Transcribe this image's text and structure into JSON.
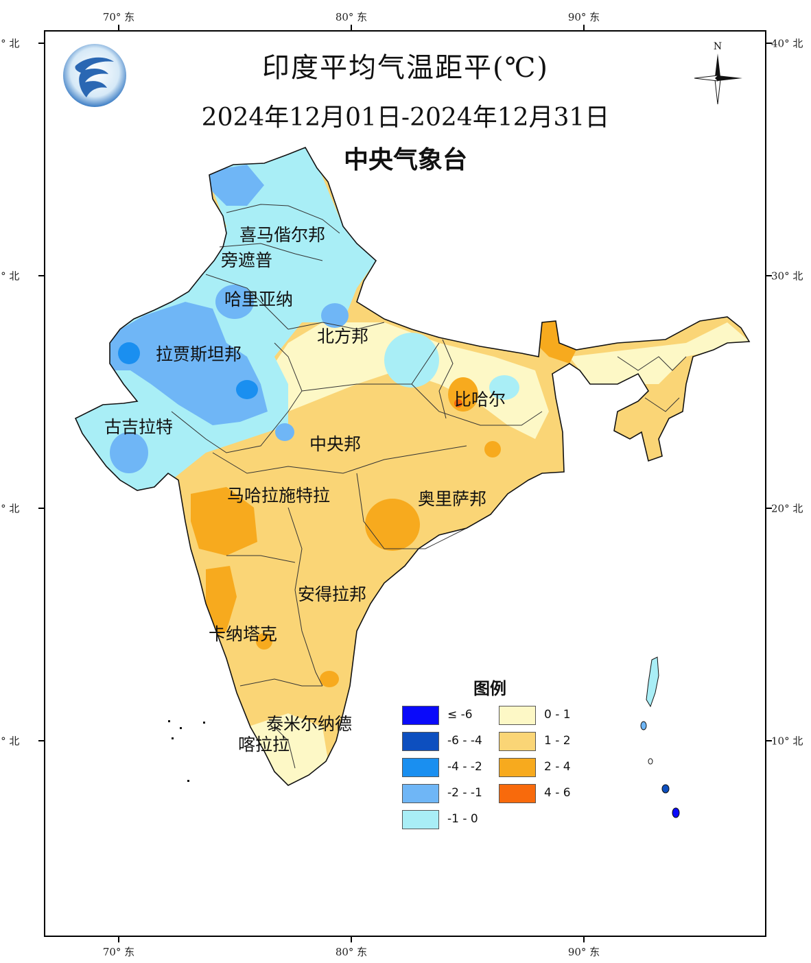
{
  "title": "印度平均气温距平(℃)",
  "subtitle": "2024年12月01日-2024年12月31日",
  "organization": "中央气象台",
  "north_arrow": {
    "label": "N",
    "icon": "north-arrow-icon"
  },
  "logo": {
    "icon": "cma-logo-icon"
  },
  "axes": {
    "longitude_labels": [
      "70° 东",
      "80° 东",
      "90° 东"
    ],
    "latitude_labels": [
      "40° 北",
      "30° 北",
      "20° 北",
      "10° 北"
    ]
  },
  "regions": [
    "喜马偕尔邦",
    "旁遮普",
    "哈里亚纳",
    "北方邦",
    "拉贾斯坦邦",
    "比哈尔",
    "古吉拉特",
    "中央邦",
    "马哈拉施特拉",
    "奥里萨邦",
    "安得拉邦",
    "卡纳塔克",
    "泰米尔纳德",
    "喀拉拉"
  ],
  "legend": {
    "title": "图例",
    "items": [
      {
        "label": "≤ -6",
        "color": "#0a0afa"
      },
      {
        "label": "-6 - -4",
        "color": "#0d4fbf"
      },
      {
        "label": "-4 - -2",
        "color": "#1a8ff0"
      },
      {
        "label": "-2 - -1",
        "color": "#6fb6f6"
      },
      {
        "label": "-1 - 0",
        "color": "#a9eef6"
      },
      {
        "label": "0 - 1",
        "color": "#fdf8c6"
      },
      {
        "label": "1 - 2",
        "color": "#fad576"
      },
      {
        "label": "2 - 4",
        "color": "#f7aa1e"
      },
      {
        "label": "4 - 6",
        "color": "#f86a0c"
      }
    ]
  }
}
